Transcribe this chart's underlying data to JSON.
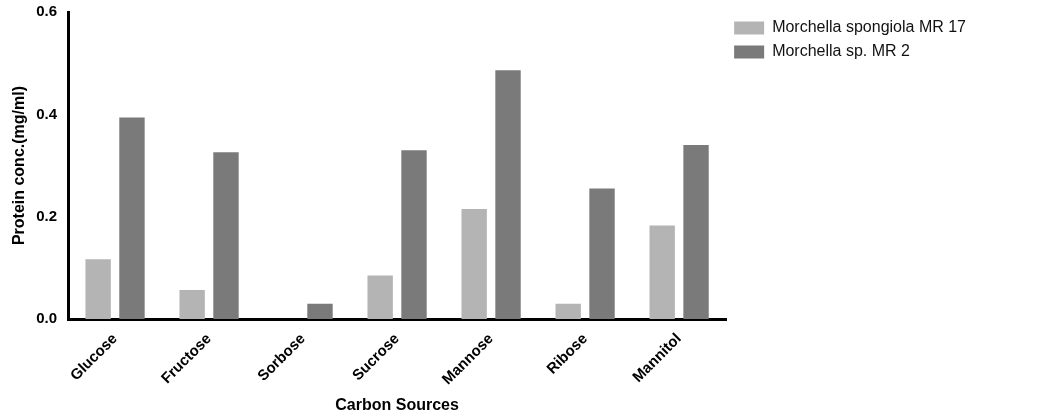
{
  "chart_data": {
    "type": "bar",
    "xlabel": "Carbon Sources",
    "ylabel": "Protein conc.(mg/ml)",
    "categories": [
      "Glucose",
      "Fructose",
      "Sorbose",
      "Sucrose",
      "Mannose",
      "Ribose",
      "Mannitol"
    ],
    "series": [
      {
        "name": "Morchella spongiola MR 17",
        "color": "#b4b4b4",
        "values": [
          0.117,
          0.057,
          0,
          0.085,
          0.215,
          0.03,
          0.183
        ]
      },
      {
        "name": "Morchella sp. MR 2",
        "color": "#7a7a7a",
        "values": [
          0.394,
          0.326,
          0.03,
          0.33,
          0.486,
          0.255,
          0.34
        ]
      }
    ],
    "ylim": [
      0,
      0.6
    ],
    "yticks": [
      {
        "value": 0,
        "label": "0.0"
      },
      0.2,
      0.4,
      0.6
    ],
    "grid": false,
    "legend": "top right"
  }
}
